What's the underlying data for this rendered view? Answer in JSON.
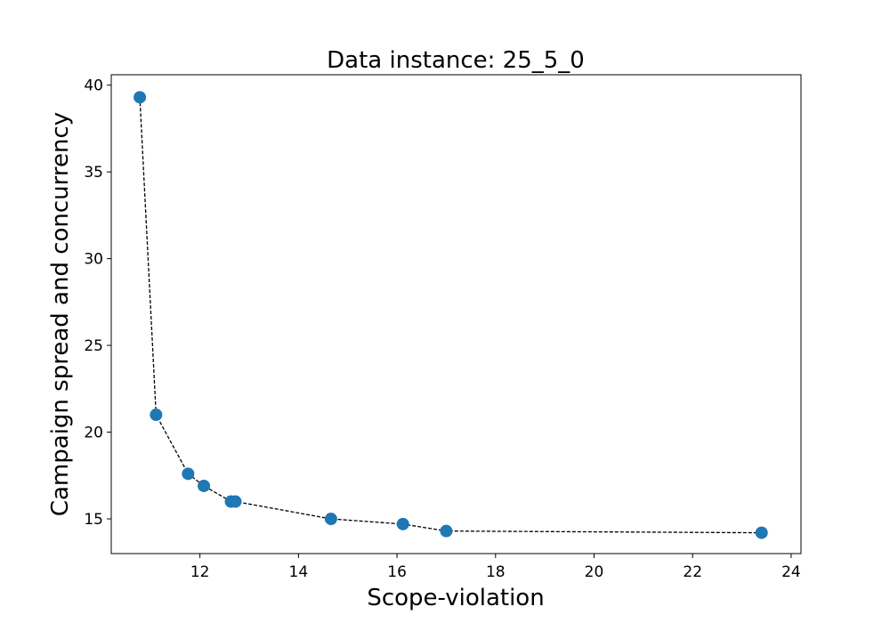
{
  "chart_data": {
    "type": "scatter",
    "title": "Data instance: 25_5_0",
    "xlabel": "Scope-violation",
    "ylabel": "Campaign spread and concurrency",
    "xlim": [
      10.2,
      24.2
    ],
    "ylim": [
      13.0,
      40.6
    ],
    "xticks": [
      12,
      14,
      16,
      18,
      20,
      22,
      24
    ],
    "yticks": [
      15,
      20,
      25,
      30,
      35,
      40
    ],
    "grid": false,
    "connected": true,
    "line_style": "dashed",
    "line_color": "#000000",
    "marker_color": "#1f77b4",
    "series": [
      {
        "x": [
          10.78,
          11.11,
          11.76,
          12.08,
          12.63,
          12.72,
          14.66,
          16.12,
          17.0,
          23.4
        ],
        "y": [
          39.3,
          21.0,
          17.6,
          16.9,
          16.0,
          16.0,
          15.0,
          14.7,
          14.3,
          14.2
        ]
      }
    ]
  }
}
